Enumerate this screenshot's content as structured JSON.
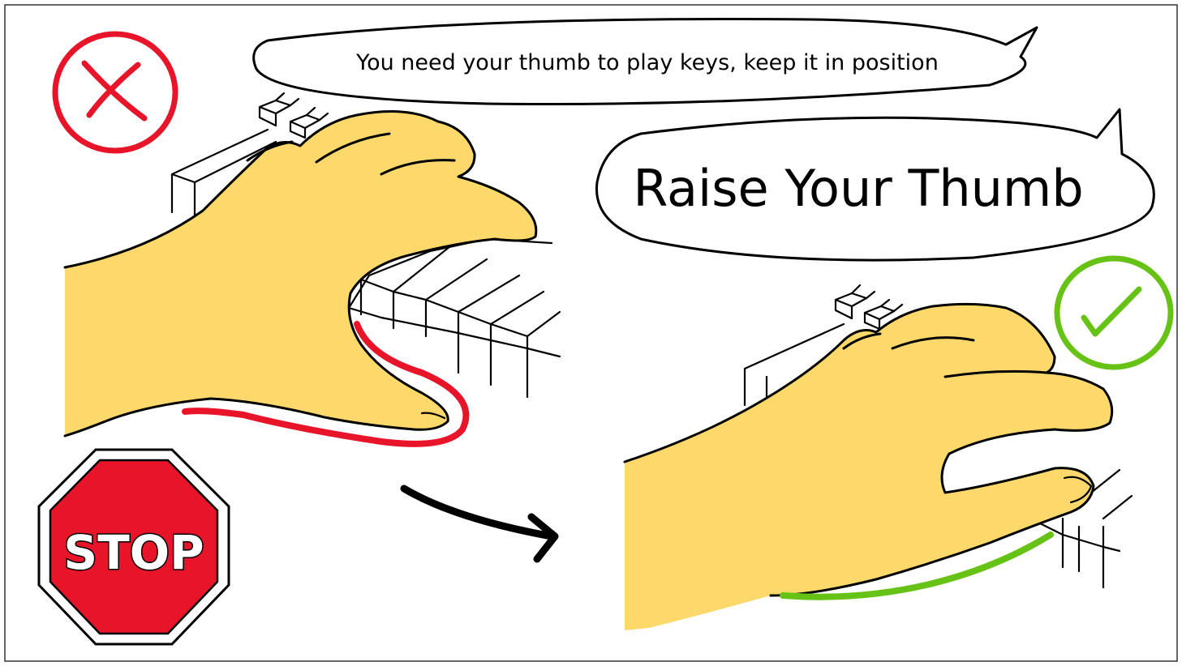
{
  "balloon_top": {
    "text": "You need your thumb to play keys, keep it in position"
  },
  "balloon_main": {
    "text": "Raise Your Thumb"
  },
  "stop_sign": {
    "text": "STOP",
    "color": "#e8152a"
  },
  "colors": {
    "wrong": "#e8152a",
    "right": "#66c214",
    "skin": "#fdd86b",
    "ink": "#000000"
  },
  "icons": {
    "wrong": "cross-icon",
    "right": "checkmark-icon",
    "arrow": "arrow-right-icon"
  }
}
